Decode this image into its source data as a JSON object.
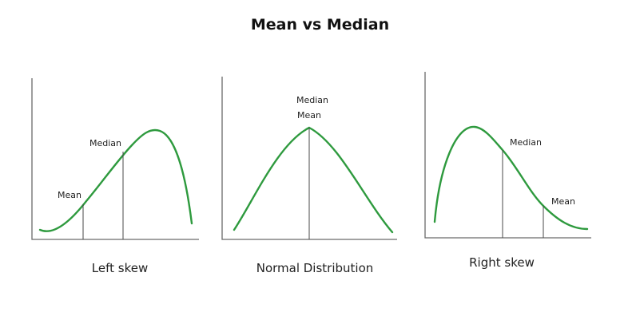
{
  "title": "Mean vs Median",
  "panels": [
    {
      "caption": "Left skew",
      "labels": {
        "median": "Median",
        "mean": "Mean"
      }
    },
    {
      "caption": "Normal Distribution",
      "labels": {
        "median": "Median",
        "mean": "Mean"
      }
    },
    {
      "caption": "Right skew",
      "labels": {
        "median": "Median",
        "mean": "Mean"
      }
    }
  ],
  "colors": {
    "curve": "#2e9a3e",
    "axis": "#6a6a6a",
    "marker": "#4a4a4a"
  }
}
